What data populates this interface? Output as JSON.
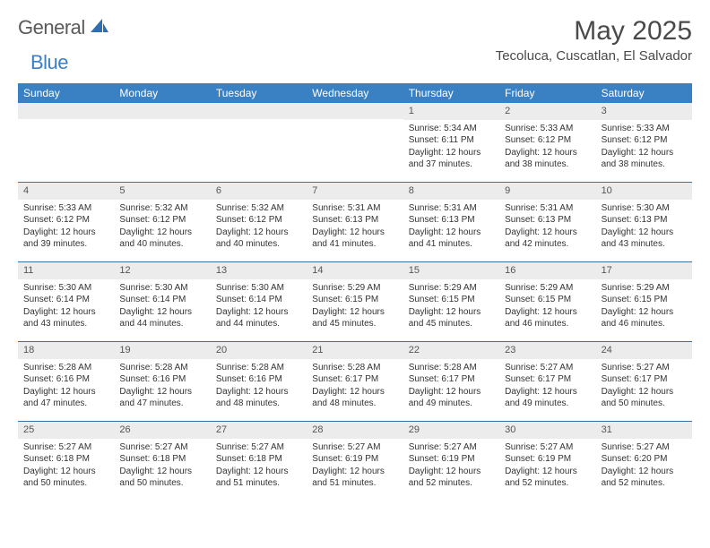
{
  "logo": {
    "text_gray": "General",
    "text_blue": "Blue"
  },
  "title": "May 2025",
  "location": "Tecoluca, Cuscatlan, El Salvador",
  "header_bg": "#3a81c4",
  "header_fg": "#ffffff",
  "daynum_bg": "#ececec",
  "week_border": "#3a6fa8",
  "day_names": [
    "Sunday",
    "Monday",
    "Tuesday",
    "Wednesday",
    "Thursday",
    "Friday",
    "Saturday"
  ],
  "weeks": [
    [
      {
        "n": "",
        "sr": "",
        "ss": "",
        "dl1": "",
        "dl2": ""
      },
      {
        "n": "",
        "sr": "",
        "ss": "",
        "dl1": "",
        "dl2": ""
      },
      {
        "n": "",
        "sr": "",
        "ss": "",
        "dl1": "",
        "dl2": ""
      },
      {
        "n": "",
        "sr": "",
        "ss": "",
        "dl1": "",
        "dl2": ""
      },
      {
        "n": "1",
        "sr": "Sunrise: 5:34 AM",
        "ss": "Sunset: 6:11 PM",
        "dl1": "Daylight: 12 hours",
        "dl2": "and 37 minutes."
      },
      {
        "n": "2",
        "sr": "Sunrise: 5:33 AM",
        "ss": "Sunset: 6:12 PM",
        "dl1": "Daylight: 12 hours",
        "dl2": "and 38 minutes."
      },
      {
        "n": "3",
        "sr": "Sunrise: 5:33 AM",
        "ss": "Sunset: 6:12 PM",
        "dl1": "Daylight: 12 hours",
        "dl2": "and 38 minutes."
      }
    ],
    [
      {
        "n": "4",
        "sr": "Sunrise: 5:33 AM",
        "ss": "Sunset: 6:12 PM",
        "dl1": "Daylight: 12 hours",
        "dl2": "and 39 minutes."
      },
      {
        "n": "5",
        "sr": "Sunrise: 5:32 AM",
        "ss": "Sunset: 6:12 PM",
        "dl1": "Daylight: 12 hours",
        "dl2": "and 40 minutes."
      },
      {
        "n": "6",
        "sr": "Sunrise: 5:32 AM",
        "ss": "Sunset: 6:12 PM",
        "dl1": "Daylight: 12 hours",
        "dl2": "and 40 minutes."
      },
      {
        "n": "7",
        "sr": "Sunrise: 5:31 AM",
        "ss": "Sunset: 6:13 PM",
        "dl1": "Daylight: 12 hours",
        "dl2": "and 41 minutes."
      },
      {
        "n": "8",
        "sr": "Sunrise: 5:31 AM",
        "ss": "Sunset: 6:13 PM",
        "dl1": "Daylight: 12 hours",
        "dl2": "and 41 minutes."
      },
      {
        "n": "9",
        "sr": "Sunrise: 5:31 AM",
        "ss": "Sunset: 6:13 PM",
        "dl1": "Daylight: 12 hours",
        "dl2": "and 42 minutes."
      },
      {
        "n": "10",
        "sr": "Sunrise: 5:30 AM",
        "ss": "Sunset: 6:13 PM",
        "dl1": "Daylight: 12 hours",
        "dl2": "and 43 minutes."
      }
    ],
    [
      {
        "n": "11",
        "sr": "Sunrise: 5:30 AM",
        "ss": "Sunset: 6:14 PM",
        "dl1": "Daylight: 12 hours",
        "dl2": "and 43 minutes."
      },
      {
        "n": "12",
        "sr": "Sunrise: 5:30 AM",
        "ss": "Sunset: 6:14 PM",
        "dl1": "Daylight: 12 hours",
        "dl2": "and 44 minutes."
      },
      {
        "n": "13",
        "sr": "Sunrise: 5:30 AM",
        "ss": "Sunset: 6:14 PM",
        "dl1": "Daylight: 12 hours",
        "dl2": "and 44 minutes."
      },
      {
        "n": "14",
        "sr": "Sunrise: 5:29 AM",
        "ss": "Sunset: 6:15 PM",
        "dl1": "Daylight: 12 hours",
        "dl2": "and 45 minutes."
      },
      {
        "n": "15",
        "sr": "Sunrise: 5:29 AM",
        "ss": "Sunset: 6:15 PM",
        "dl1": "Daylight: 12 hours",
        "dl2": "and 45 minutes."
      },
      {
        "n": "16",
        "sr": "Sunrise: 5:29 AM",
        "ss": "Sunset: 6:15 PM",
        "dl1": "Daylight: 12 hours",
        "dl2": "and 46 minutes."
      },
      {
        "n": "17",
        "sr": "Sunrise: 5:29 AM",
        "ss": "Sunset: 6:15 PM",
        "dl1": "Daylight: 12 hours",
        "dl2": "and 46 minutes."
      }
    ],
    [
      {
        "n": "18",
        "sr": "Sunrise: 5:28 AM",
        "ss": "Sunset: 6:16 PM",
        "dl1": "Daylight: 12 hours",
        "dl2": "and 47 minutes."
      },
      {
        "n": "19",
        "sr": "Sunrise: 5:28 AM",
        "ss": "Sunset: 6:16 PM",
        "dl1": "Daylight: 12 hours",
        "dl2": "and 47 minutes."
      },
      {
        "n": "20",
        "sr": "Sunrise: 5:28 AM",
        "ss": "Sunset: 6:16 PM",
        "dl1": "Daylight: 12 hours",
        "dl2": "and 48 minutes."
      },
      {
        "n": "21",
        "sr": "Sunrise: 5:28 AM",
        "ss": "Sunset: 6:17 PM",
        "dl1": "Daylight: 12 hours",
        "dl2": "and 48 minutes."
      },
      {
        "n": "22",
        "sr": "Sunrise: 5:28 AM",
        "ss": "Sunset: 6:17 PM",
        "dl1": "Daylight: 12 hours",
        "dl2": "and 49 minutes."
      },
      {
        "n": "23",
        "sr": "Sunrise: 5:27 AM",
        "ss": "Sunset: 6:17 PM",
        "dl1": "Daylight: 12 hours",
        "dl2": "and 49 minutes."
      },
      {
        "n": "24",
        "sr": "Sunrise: 5:27 AM",
        "ss": "Sunset: 6:17 PM",
        "dl1": "Daylight: 12 hours",
        "dl2": "and 50 minutes."
      }
    ],
    [
      {
        "n": "25",
        "sr": "Sunrise: 5:27 AM",
        "ss": "Sunset: 6:18 PM",
        "dl1": "Daylight: 12 hours",
        "dl2": "and 50 minutes."
      },
      {
        "n": "26",
        "sr": "Sunrise: 5:27 AM",
        "ss": "Sunset: 6:18 PM",
        "dl1": "Daylight: 12 hours",
        "dl2": "and 50 minutes."
      },
      {
        "n": "27",
        "sr": "Sunrise: 5:27 AM",
        "ss": "Sunset: 6:18 PM",
        "dl1": "Daylight: 12 hours",
        "dl2": "and 51 minutes."
      },
      {
        "n": "28",
        "sr": "Sunrise: 5:27 AM",
        "ss": "Sunset: 6:19 PM",
        "dl1": "Daylight: 12 hours",
        "dl2": "and 51 minutes."
      },
      {
        "n": "29",
        "sr": "Sunrise: 5:27 AM",
        "ss": "Sunset: 6:19 PM",
        "dl1": "Daylight: 12 hours",
        "dl2": "and 52 minutes."
      },
      {
        "n": "30",
        "sr": "Sunrise: 5:27 AM",
        "ss": "Sunset: 6:19 PM",
        "dl1": "Daylight: 12 hours",
        "dl2": "and 52 minutes."
      },
      {
        "n": "31",
        "sr": "Sunrise: 5:27 AM",
        "ss": "Sunset: 6:20 PM",
        "dl1": "Daylight: 12 hours",
        "dl2": "and 52 minutes."
      }
    ]
  ]
}
